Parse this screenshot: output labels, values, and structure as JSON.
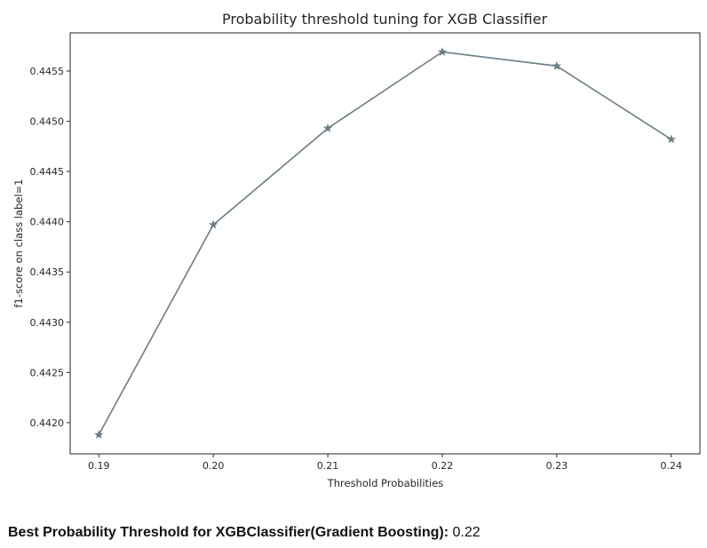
{
  "chart_data": {
    "type": "line",
    "title": "Probability threshold tuning for XGB Classifier",
    "xlabel": "Threshold Probabilities",
    "ylabel": "f1-score on class label=1",
    "x": [
      0.19,
      0.2,
      0.21,
      0.22,
      0.23,
      0.24
    ],
    "x_tick_labels": [
      "0.19",
      "0.20",
      "0.21",
      "0.22",
      "0.23",
      "0.24"
    ],
    "series": [
      {
        "values": [
          0.44188,
          0.44397,
          0.44493,
          0.44569,
          0.44555,
          0.44482
        ],
        "color": "#6b7c85",
        "marker": "star"
      }
    ],
    "y_ticks": [
      0.442,
      0.4425,
      0.443,
      0.4435,
      0.444,
      0.4445,
      0.445,
      0.4455
    ],
    "y_tick_labels": [
      "0.4420",
      "0.4425",
      "0.4430",
      "0.4435",
      "0.4440",
      "0.4445",
      "0.4450",
      "0.4455"
    ],
    "xlim": [
      0.1875,
      0.2425
    ],
    "ylim": [
      0.44169,
      0.44588
    ],
    "grid": false
  },
  "result": {
    "label": "Best Probability Threshold for XGBClassifier(Gradient Boosting):",
    "value": "0.22"
  }
}
